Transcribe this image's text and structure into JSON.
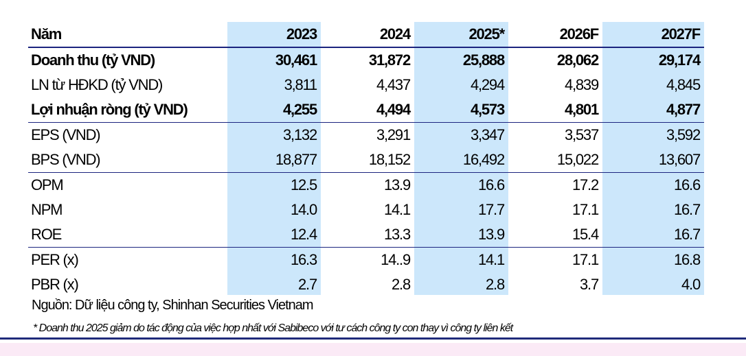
{
  "table": {
    "header": [
      "Năm",
      "2023",
      "2024",
      "2025*",
      "2026F",
      "2027F"
    ],
    "rows": [
      [
        "Doanh thu (tỷ VND)",
        "30,461",
        "31,872",
        "25,888",
        "28,062",
        "29,174"
      ],
      [
        "LN từ HĐKD (tỷ VND)",
        "3,811",
        "4,437",
        "4,294",
        "4,839",
        "4,845"
      ],
      [
        "Lợi nhuận ròng (tỷ VND)",
        "4,255",
        "4,494",
        "4,573",
        "4,801",
        "4,877"
      ],
      [
        "EPS (VND)",
        "3,132",
        "3,291",
        "3,347",
        "3,537",
        "3,592"
      ],
      [
        "BPS (VND)",
        "18,877",
        "18,152",
        "16,492",
        "15,022",
        "13,607"
      ],
      [
        "OPM",
        "12.5",
        "13.9",
        "16.6",
        "17.2",
        "16.6"
      ],
      [
        "NPM",
        "14.0",
        "14.1",
        "17.7",
        "17.1",
        "16.7"
      ],
      [
        "ROE",
        "12.4",
        "13.3",
        "13.9",
        "15.4",
        "16.7"
      ],
      [
        "PER (x)",
        "16.3",
        "14..9",
        "14.1",
        "17.1",
        "16.8"
      ],
      [
        "PBR (x)",
        "2.7",
        "2.8",
        "2.8",
        "3.7",
        "4.0"
      ]
    ]
  },
  "source": "Nguồn: Dữ liệu công ty, Shinhan Securities Vietnam",
  "footnote": "* Doanh thu 2025 giảm do tác động của việc hợp nhất với Sabibeco với tư cách công ty con thay vì công ty liên kết",
  "colors": {
    "column_highlight": "#cce7fb",
    "rule": "#1f2a7a",
    "bottom_band": "#fbeaf6"
  }
}
